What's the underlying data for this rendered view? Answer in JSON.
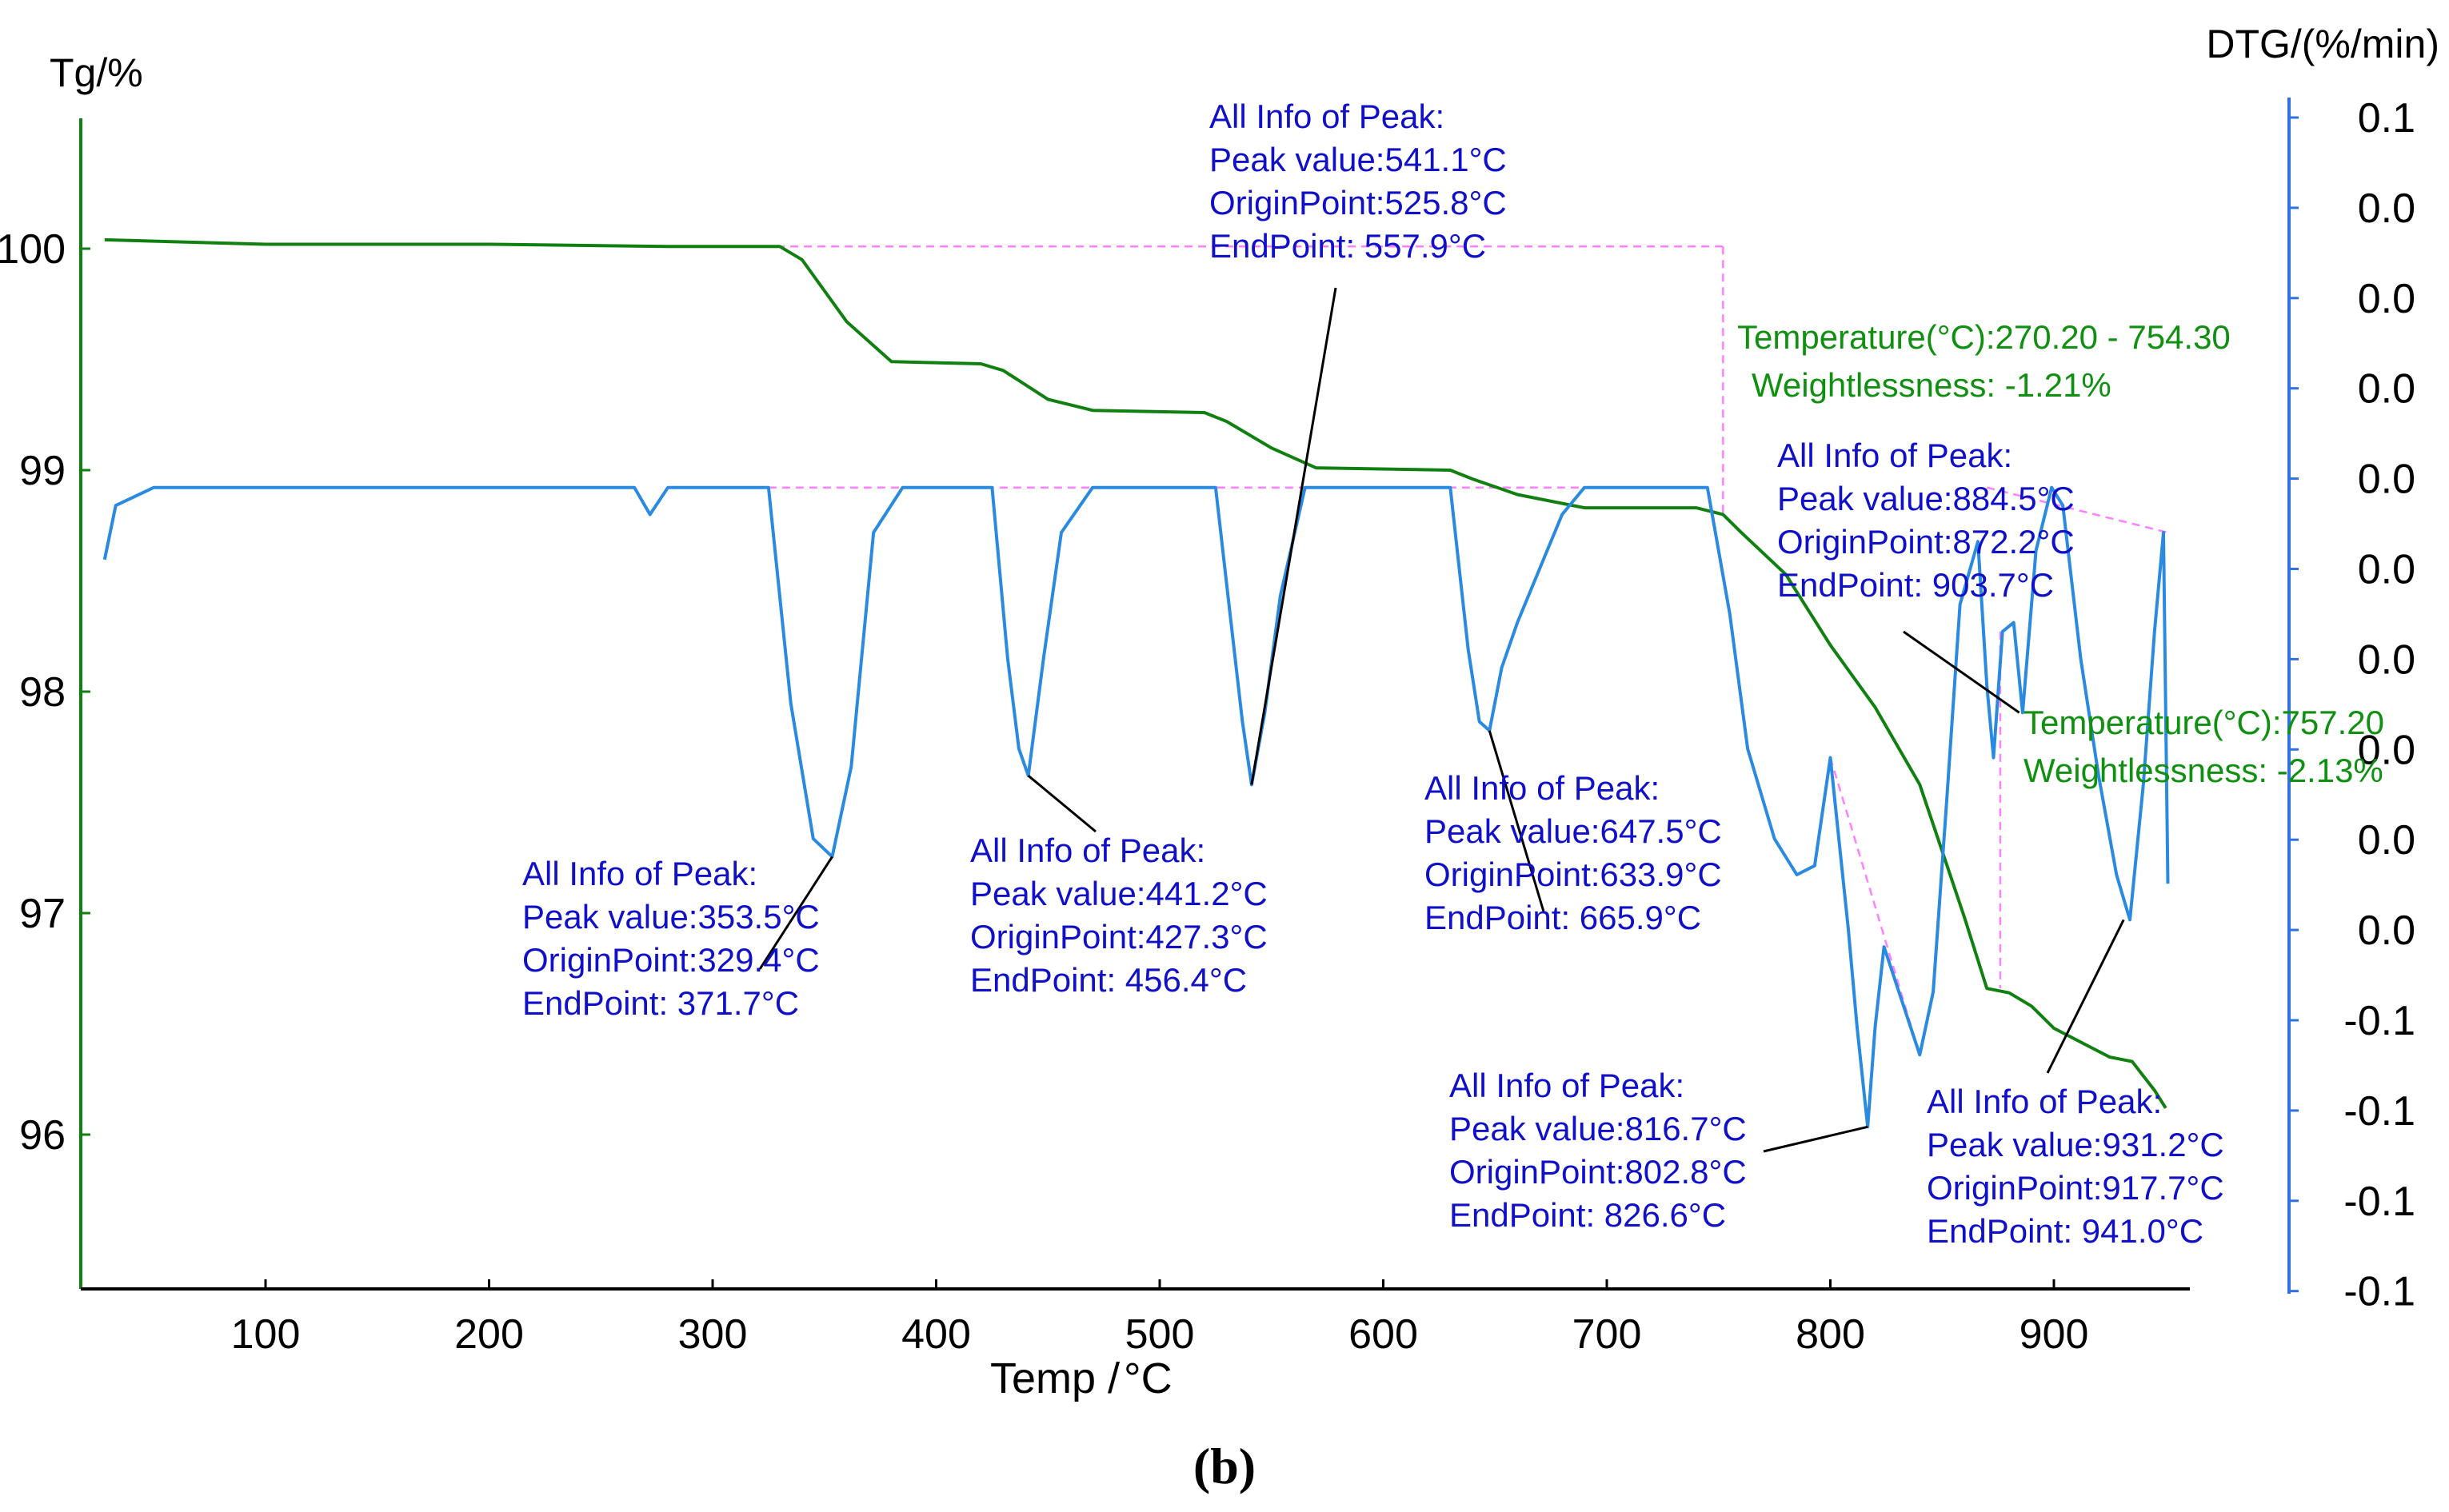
{
  "chart_data": {
    "type": "line",
    "panel_label": "(b)",
    "xlabel": "Temp /",
    "xlabel_unit": "°C",
    "y_left_label": "Tg/%",
    "y_right_label": "DTG/(%/min)",
    "xlim": [
      25,
      960
    ],
    "ylim_left": [
      95.4,
      100.6
    ],
    "ylim_right_plot": [
      0,
      13
    ],
    "x_ticks": [
      100,
      200,
      300,
      400,
      500,
      600,
      700,
      800,
      900
    ],
    "y_left_ticks": [
      96,
      97,
      98,
      99,
      100
    ],
    "y_right_tick_labels": [
      "0.1",
      "0.0",
      "0.0",
      "0.0",
      "0.0",
      "0.0",
      "0.0",
      "0.0",
      "0.0",
      "0.0",
      "-0.1",
      "-0.1",
      "-0.1",
      "-0.1"
    ],
    "colors": {
      "tg": "#108010",
      "dtg": "#2a8ae0",
      "fit": "#7040e0",
      "baseline": "#ff80ff",
      "ann": "#1010c8",
      "gann": "#109010",
      "axis_right": "#3070e0"
    },
    "series": [
      {
        "name": "TG",
        "axis": "left",
        "x": [
          28,
          100,
          200,
          280,
          330,
          340,
          360,
          380,
          420,
          430,
          450,
          470,
          520,
          530,
          550,
          570,
          630,
          640,
          660,
          690,
          740,
          752,
          760,
          780,
          800,
          820,
          840,
          850,
          860,
          870,
          880,
          890,
          900,
          925,
          935,
          945,
          950
        ],
        "y": [
          100.04,
          100.02,
          100.02,
          100.01,
          100.01,
          99.95,
          99.67,
          99.49,
          99.48,
          99.45,
          99.32,
          99.27,
          99.26,
          99.22,
          99.1,
          99.01,
          99.0,
          98.96,
          98.89,
          98.83,
          98.83,
          98.8,
          98.72,
          98.53,
          98.21,
          97.93,
          97.58,
          97.28,
          96.98,
          96.66,
          96.64,
          96.58,
          96.48,
          96.35,
          96.33,
          96.2,
          96.12
        ]
      },
      {
        "name": "DTG",
        "axis": "right",
        "x": [
          28,
          33,
          50,
          265,
          272,
          280,
          290,
          325,
          335,
          345,
          353.5,
          362,
          372,
          385,
          425,
          432,
          437,
          441.2,
          448,
          456,
          470,
          525,
          531,
          537,
          541.1,
          547,
          554,
          565,
          630,
          638,
          643,
          647.5,
          653,
          660,
          670,
          680,
          690,
          745,
          755,
          763,
          775,
          785,
          793,
          800,
          808,
          812,
          816.7,
          820,
          824,
          832,
          840,
          846,
          852,
          858,
          866,
          870,
          873,
          877,
          882,
          886,
          892,
          899,
          904,
          912,
          920,
          928,
          934,
          940,
          945,
          949,
          951
        ],
        "y": [
          8.1,
          8.7,
          8.9,
          8.9,
          8.6,
          8.9,
          8.9,
          8.9,
          6.5,
          5.0,
          4.8,
          5.8,
          8.4,
          8.9,
          8.9,
          7.0,
          6.0,
          5.7,
          7.0,
          8.4,
          8.9,
          8.9,
          7.6,
          6.3,
          5.6,
          6.4,
          7.7,
          8.9,
          8.9,
          7.1,
          6.3,
          6.2,
          6.9,
          7.4,
          8.0,
          8.6,
          8.9,
          8.9,
          7.5,
          6.0,
          5.0,
          4.6,
          4.7,
          5.9,
          4.0,
          2.9,
          1.8,
          2.9,
          3.8,
          3.2,
          2.6,
          3.3,
          5.4,
          7.6,
          8.3,
          6.7,
          5.9,
          7.3,
          7.4,
          6.4,
          8.2,
          8.9,
          8.7,
          7.0,
          5.7,
          4.6,
          4.1,
          5.6,
          7.3,
          8.4,
          4.5
        ]
      }
    ],
    "peak_annotations": [
      {
        "lines": [
          "All Info of Peak:",
          "Peak value:353.5",
          "OriginPoint:329.4",
          "EndPoint: 371.7"
        ],
        "unit": "°C"
      },
      {
        "lines": [
          "All Info of Peak:",
          "Peak value:441.2",
          "OriginPoint:427.3",
          "EndPoint: 456.4"
        ],
        "unit": "°C"
      },
      {
        "lines": [
          "All Info of Peak:",
          "Peak value:541.1",
          "OriginPoint:525.8",
          "EndPoint: 557.9"
        ],
        "unit": "°C"
      },
      {
        "lines": [
          "All Info of Peak:",
          "Peak value:647.5",
          "OriginPoint:633.9",
          "EndPoint: 665.9"
        ],
        "unit": "°C"
      },
      {
        "lines": [
          "All Info of Peak:",
          "Peak value:816.7",
          "OriginPoint:802.8",
          "EndPoint: 826.6"
        ],
        "unit": "°C"
      },
      {
        "lines": [
          "All Info of Peak:",
          "Peak value:884.5",
          "OriginPoint:872.2",
          "EndPoint: 903.7"
        ],
        "unit": "°C"
      },
      {
        "lines": [
          "All Info of Peak:",
          "Peak value:931.2",
          "OriginPoint:917.7",
          "EndPoint: 941.0"
        ],
        "unit": "°C"
      }
    ],
    "mass_loss_annotations": [
      {
        "temperature": "Temperature(°C):270.20 - 754.30",
        "weightlessness": "Weightlessness: -1.21%"
      },
      {
        "temperature": "Temperature(°C):757.20",
        "weightlessness": "Weightlessness: -2.13%"
      }
    ]
  }
}
